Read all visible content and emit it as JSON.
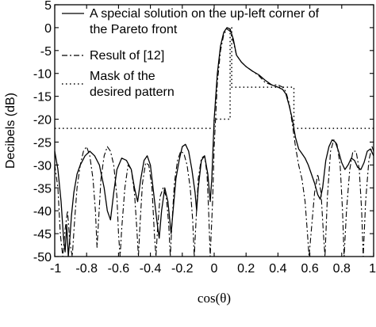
{
  "chart_data": {
    "type": "line",
    "title": "",
    "xlabel": "cos(θ)",
    "ylabel": "Decibels (dB)",
    "xlim": [
      -1,
      1
    ],
    "ylim": [
      -50,
      5
    ],
    "grid": false,
    "legend_position": "top-left",
    "xticks": [
      "-1",
      "-0.8",
      "-0.6",
      "-0.4",
      "-0.2",
      "0",
      "0.2",
      "0.4",
      "0.6",
      "0.8",
      "1"
    ],
    "yticks": [
      "5",
      "0",
      "-5",
      "-10",
      "-15",
      "-20",
      "-25",
      "-30",
      "-35",
      "-40",
      "-45",
      "-50"
    ],
    "series": [
      {
        "name": "A special solution on the up-left corner of the Pareto front",
        "style": "solid",
        "points": [
          [
            -1.0,
            -27
          ],
          [
            -0.98,
            -31
          ],
          [
            -0.96,
            -38
          ],
          [
            -0.945,
            -46
          ],
          [
            -0.935,
            -49
          ],
          [
            -0.925,
            -43
          ],
          [
            -0.915,
            -50
          ],
          [
            -0.905,
            -46
          ],
          [
            -0.895,
            -41
          ],
          [
            -0.88,
            -36
          ],
          [
            -0.86,
            -32
          ],
          [
            -0.84,
            -30
          ],
          [
            -0.81,
            -28
          ],
          [
            -0.78,
            -27
          ],
          [
            -0.75,
            -28
          ],
          [
            -0.72,
            -30
          ],
          [
            -0.69,
            -35
          ],
          [
            -0.67,
            -40
          ],
          [
            -0.65,
            -42
          ],
          [
            -0.63,
            -36
          ],
          [
            -0.61,
            -31
          ],
          [
            -0.58,
            -28.5
          ],
          [
            -0.55,
            -29
          ],
          [
            -0.52,
            -31
          ],
          [
            -0.5,
            -35
          ],
          [
            -0.48,
            -38
          ],
          [
            -0.46,
            -33
          ],
          [
            -0.44,
            -29
          ],
          [
            -0.42,
            -28
          ],
          [
            -0.4,
            -30
          ],
          [
            -0.38,
            -36
          ],
          [
            -0.36,
            -42
          ],
          [
            -0.345,
            -46
          ],
          [
            -0.33,
            -40
          ],
          [
            -0.31,
            -35
          ],
          [
            -0.29,
            -38
          ],
          [
            -0.27,
            -45
          ],
          [
            -0.255,
            -39
          ],
          [
            -0.24,
            -33
          ],
          [
            -0.22,
            -29
          ],
          [
            -0.2,
            -26
          ],
          [
            -0.18,
            -25.5
          ],
          [
            -0.16,
            -27
          ],
          [
            -0.14,
            -31
          ],
          [
            -0.12,
            -36
          ],
          [
            -0.11,
            -40
          ],
          [
            -0.1,
            -35
          ],
          [
            -0.08,
            -29
          ],
          [
            -0.06,
            -28
          ],
          [
            -0.04,
            -32
          ],
          [
            -0.025,
            -38
          ],
          [
            -0.015,
            -33
          ],
          [
            0.0,
            -20
          ],
          [
            0.02,
            -10
          ],
          [
            0.04,
            -4
          ],
          [
            0.06,
            -1
          ],
          [
            0.08,
            0
          ],
          [
            0.1,
            -0.3
          ],
          [
            0.12,
            -2.5
          ],
          [
            0.14,
            -6
          ],
          [
            0.17,
            -7.5
          ],
          [
            0.2,
            -8.5
          ],
          [
            0.24,
            -9.5
          ],
          [
            0.28,
            -10.3
          ],
          [
            0.32,
            -11.5
          ],
          [
            0.36,
            -12.5
          ],
          [
            0.4,
            -13
          ],
          [
            0.43,
            -13.5
          ],
          [
            0.45,
            -14.5
          ],
          [
            0.47,
            -17
          ],
          [
            0.49,
            -20
          ],
          [
            0.51,
            -24
          ],
          [
            0.53,
            -26.5
          ],
          [
            0.55,
            -27.5
          ],
          [
            0.57,
            -28.5
          ],
          [
            0.59,
            -30
          ],
          [
            0.61,
            -32
          ],
          [
            0.63,
            -34
          ],
          [
            0.65,
            -36.5
          ],
          [
            0.665,
            -37.5
          ],
          [
            0.68,
            -35
          ],
          [
            0.7,
            -29
          ],
          [
            0.72,
            -26
          ],
          [
            0.74,
            -24.5
          ],
          [
            0.76,
            -25
          ],
          [
            0.78,
            -27
          ],
          [
            0.8,
            -29.5
          ],
          [
            0.82,
            -31
          ],
          [
            0.84,
            -30
          ],
          [
            0.86,
            -28.5
          ],
          [
            0.88,
            -29
          ],
          [
            0.9,
            -30.5
          ],
          [
            0.92,
            -31
          ],
          [
            0.94,
            -29.5
          ],
          [
            0.96,
            -27
          ],
          [
            0.98,
            -26.5
          ],
          [
            1.0,
            -28
          ]
        ]
      },
      {
        "name": "Result of [12]",
        "style": "dashdot",
        "points": [
          [
            -1.0,
            -30
          ],
          [
            -0.98,
            -35
          ],
          [
            -0.965,
            -45
          ],
          [
            -0.95,
            -50
          ],
          [
            -0.935,
            -44
          ],
          [
            -0.92,
            -40
          ],
          [
            -0.905,
            -47
          ],
          [
            -0.89,
            -50
          ],
          [
            -0.875,
            -42
          ],
          [
            -0.86,
            -35
          ],
          [
            -0.84,
            -30
          ],
          [
            -0.82,
            -27
          ],
          [
            -0.8,
            -26
          ],
          [
            -0.78,
            -28
          ],
          [
            -0.76,
            -33
          ],
          [
            -0.745,
            -40
          ],
          [
            -0.735,
            -48
          ],
          [
            -0.725,
            -42
          ],
          [
            -0.71,
            -33
          ],
          [
            -0.69,
            -28
          ],
          [
            -0.67,
            -26
          ],
          [
            -0.65,
            -27
          ],
          [
            -0.63,
            -30
          ],
          [
            -0.61,
            -37
          ],
          [
            -0.6,
            -45
          ],
          [
            -0.59,
            -50
          ],
          [
            -0.58,
            -44
          ],
          [
            -0.56,
            -35
          ],
          [
            -0.54,
            -30
          ],
          [
            -0.52,
            -31
          ],
          [
            -0.5,
            -36
          ],
          [
            -0.485,
            -44
          ],
          [
            -0.475,
            -50
          ],
          [
            -0.465,
            -43
          ],
          [
            -0.45,
            -34
          ],
          [
            -0.43,
            -29.5
          ],
          [
            -0.41,
            -30
          ],
          [
            -0.39,
            -35
          ],
          [
            -0.375,
            -45
          ],
          [
            -0.365,
            -50
          ],
          [
            -0.355,
            -44
          ],
          [
            -0.34,
            -37
          ],
          [
            -0.32,
            -35
          ],
          [
            -0.3,
            -37
          ],
          [
            -0.285,
            -43
          ],
          [
            -0.275,
            -50
          ],
          [
            -0.265,
            -43
          ],
          [
            -0.25,
            -34
          ],
          [
            -0.23,
            -29
          ],
          [
            -0.21,
            -27
          ],
          [
            -0.19,
            -27.5
          ],
          [
            -0.17,
            -30
          ],
          [
            -0.15,
            -35
          ],
          [
            -0.135,
            -42
          ],
          [
            -0.125,
            -50
          ],
          [
            -0.115,
            -43
          ],
          [
            -0.1,
            -33
          ],
          [
            -0.08,
            -28.5
          ],
          [
            -0.06,
            -28
          ],
          [
            -0.045,
            -32
          ],
          [
            -0.035,
            -40
          ],
          [
            -0.025,
            -50
          ],
          [
            -0.01,
            -38
          ],
          [
            0.0,
            -26
          ],
          [
            0.02,
            -12
          ],
          [
            0.04,
            -5
          ],
          [
            0.06,
            -1.5
          ],
          [
            0.08,
            -0.3
          ],
          [
            0.1,
            -0.8
          ],
          [
            0.12,
            -3
          ],
          [
            0.14,
            -6
          ],
          [
            0.17,
            -7.5
          ],
          [
            0.2,
            -8.5
          ],
          [
            0.24,
            -9.5
          ],
          [
            0.28,
            -10.5
          ],
          [
            0.32,
            -12
          ],
          [
            0.36,
            -12.5
          ],
          [
            0.4,
            -12.5
          ],
          [
            0.43,
            -13
          ],
          [
            0.45,
            -14
          ],
          [
            0.47,
            -16.5
          ],
          [
            0.49,
            -21
          ],
          [
            0.51,
            -26
          ],
          [
            0.53,
            -30
          ],
          [
            0.55,
            -33
          ],
          [
            0.57,
            -38
          ],
          [
            0.585,
            -45
          ],
          [
            0.595,
            -50
          ],
          [
            0.61,
            -44
          ],
          [
            0.63,
            -36
          ],
          [
            0.65,
            -32
          ],
          [
            0.67,
            -36
          ],
          [
            0.685,
            -45
          ],
          [
            0.695,
            -50
          ],
          [
            0.71,
            -37
          ],
          [
            0.73,
            -27
          ],
          [
            0.75,
            -24.5
          ],
          [
            0.77,
            -25.5
          ],
          [
            0.79,
            -30
          ],
          [
            0.805,
            -40
          ],
          [
            0.815,
            -50
          ],
          [
            0.83,
            -40
          ],
          [
            0.85,
            -31
          ],
          [
            0.87,
            -27
          ],
          [
            0.89,
            -27
          ],
          [
            0.91,
            -31
          ],
          [
            0.925,
            -40
          ],
          [
            0.935,
            -50
          ],
          [
            0.95,
            -38
          ],
          [
            0.97,
            -29
          ],
          [
            0.99,
            -26
          ],
          [
            1.0,
            -27
          ]
        ]
      },
      {
        "name": "Mask of the desired pattern",
        "style": "dotted",
        "points": [
          [
            -1.0,
            -22
          ],
          [
            0.0,
            -22
          ],
          [
            0.0,
            -20
          ],
          [
            0.1,
            -20
          ],
          [
            0.1,
            0
          ],
          [
            0.11,
            0
          ],
          [
            0.11,
            -13
          ],
          [
            0.5,
            -13
          ],
          [
            0.5,
            -22
          ],
          [
            1.0,
            -22
          ]
        ]
      }
    ]
  }
}
